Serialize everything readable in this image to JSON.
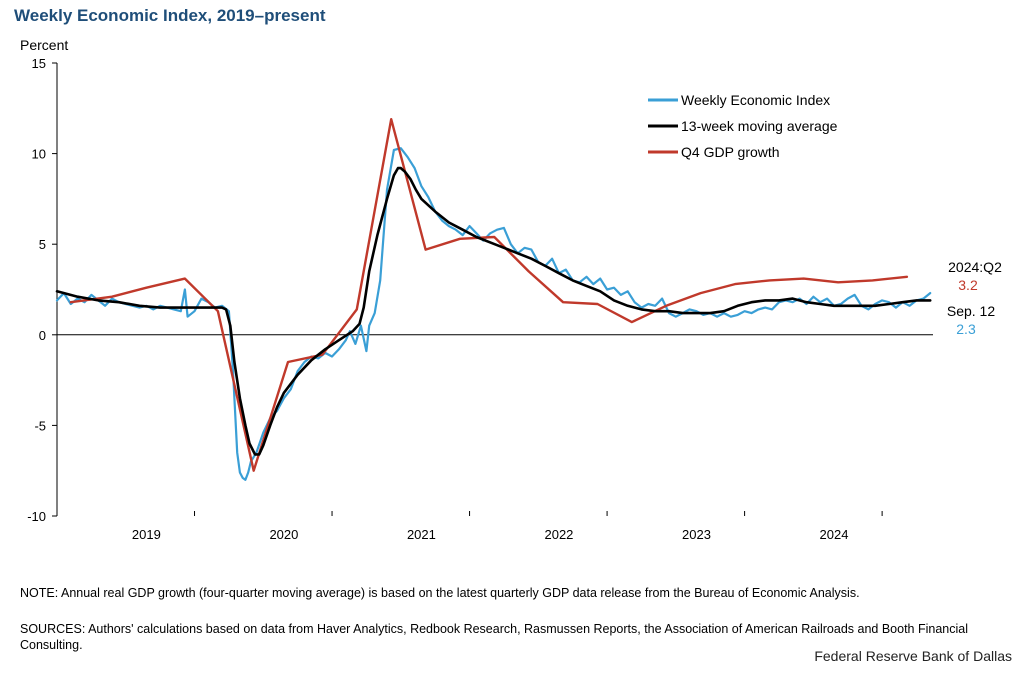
{
  "header": {
    "title": "Weekly Economic Index, 2019–present"
  },
  "notes": {
    "note": "NOTE: Annual real GDP growth (four-quarter moving average) is based on the latest quarterly GDP data release from the Bureau of Economic Analysis.",
    "sources": "SOURCES: Authors' calculations based on data from Haver Analytics, Redbook Research, Rasmussen Reports, the Association of American Railroads and Booth Financial Consulting."
  },
  "footer": {
    "credit": "Federal Reserve Bank of Dallas"
  },
  "annotations": {
    "gdp_period": "2024:Q2",
    "gdp_value": "3.2",
    "wei_date": "Sep. 12",
    "wei_value": "2.3"
  },
  "colors": {
    "wei": "#3a9fd6",
    "ma": "#000000",
    "gdp": "#c0392b",
    "title": "#1f4e79"
  },
  "chart_data": {
    "type": "line",
    "title": "Weekly Economic Index, 2019–present",
    "ylabel": "Percent",
    "xlabel": "",
    "ylim": [
      -10,
      15
    ],
    "xlim": [
      2018.35,
      2024.72
    ],
    "yticks": [
      -10,
      -5,
      0,
      5,
      10,
      15
    ],
    "xtick_labels": [
      "2019",
      "2020",
      "2021",
      "2022",
      "2023",
      "2024"
    ],
    "xtick_positions": [
      2019,
      2020,
      2021,
      2022,
      2023,
      2024
    ],
    "grid": false,
    "legend": "top-right",
    "series": [
      {
        "name": "Weekly Economic Index",
        "x": [
          2018.35,
          2018.4,
          2018.45,
          2018.5,
          2018.55,
          2018.6,
          2018.65,
          2018.7,
          2018.75,
          2018.8,
          2018.85,
          2018.9,
          2018.95,
          2019.0,
          2019.05,
          2019.1,
          2019.15,
          2019.2,
          2019.25,
          2019.28,
          2019.3,
          2019.35,
          2019.4,
          2019.45,
          2019.5,
          2019.55,
          2019.6,
          2019.63,
          2019.66,
          2019.68,
          2019.7,
          2019.72,
          2019.74,
          2019.76,
          2019.8,
          2019.85,
          2019.9,
          2019.95,
          2020.0,
          2020.05,
          2020.1,
          2020.15,
          2020.2,
          2020.25,
          2020.3,
          2020.35,
          2020.4,
          2020.45,
          2020.48,
          2020.52,
          2020.56,
          2020.6,
          2020.62,
          2020.66,
          2020.7,
          2020.75,
          2020.8,
          2020.85,
          2020.9,
          2020.95,
          2021.0,
          2021.05,
          2021.1,
          2021.15,
          2021.2,
          2021.25,
          2021.3,
          2021.35,
          2021.4,
          2021.45,
          2021.5,
          2021.55,
          2021.6,
          2021.65,
          2021.7,
          2021.75,
          2021.8,
          2021.85,
          2021.9,
          2021.95,
          2022.0,
          2022.05,
          2022.1,
          2022.15,
          2022.2,
          2022.25,
          2022.3,
          2022.35,
          2022.4,
          2022.45,
          2022.5,
          2022.55,
          2022.6,
          2022.65,
          2022.7,
          2022.75,
          2022.8,
          2022.85,
          2022.9,
          2022.95,
          2023.0,
          2023.05,
          2023.1,
          2023.15,
          2023.2,
          2023.25,
          2023.3,
          2023.35,
          2023.4,
          2023.45,
          2023.5,
          2023.55,
          2023.6,
          2023.65,
          2023.7,
          2023.75,
          2023.8,
          2023.85,
          2023.9,
          2023.95,
          2024.0,
          2024.05,
          2024.1,
          2024.15,
          2024.2,
          2024.25,
          2024.3,
          2024.35,
          2024.4,
          2024.45,
          2024.5,
          2024.55,
          2024.6,
          2024.65,
          2024.7
        ],
        "y": [
          1.9,
          2.3,
          1.7,
          2.0,
          1.8,
          2.2,
          1.9,
          1.6,
          2.0,
          1.8,
          1.7,
          1.6,
          1.5,
          1.6,
          1.4,
          1.6,
          1.5,
          1.4,
          1.3,
          2.5,
          1.0,
          1.3,
          2.0,
          1.8,
          1.5,
          1.6,
          1.3,
          -2.0,
          -6.5,
          -7.6,
          -7.9,
          -8.0,
          -7.6,
          -7.0,
          -6.5,
          -5.4,
          -4.6,
          -4.2,
          -3.5,
          -3.0,
          -2.0,
          -1.5,
          -1.2,
          -1.3,
          -1.0,
          -1.2,
          -0.8,
          -0.3,
          0.2,
          -0.5,
          0.5,
          -0.9,
          0.5,
          1.2,
          3.0,
          8.0,
          10.2,
          10.3,
          9.8,
          9.2,
          8.2,
          7.6,
          6.8,
          6.3,
          6.0,
          5.8,
          5.5,
          6.0,
          5.6,
          5.2,
          5.6,
          5.8,
          5.9,
          5.0,
          4.5,
          4.8,
          4.7,
          4.0,
          3.8,
          4.2,
          3.4,
          3.6,
          3.0,
          2.9,
          3.2,
          2.8,
          3.1,
          2.5,
          2.6,
          2.2,
          2.4,
          1.8,
          1.5,
          1.7,
          1.6,
          2.0,
          1.2,
          1.0,
          1.2,
          1.4,
          1.3,
          1.1,
          1.2,
          1.0,
          1.2,
          1.0,
          1.1,
          1.3,
          1.2,
          1.4,
          1.5,
          1.4,
          1.8,
          1.9,
          1.8,
          2.0,
          1.7,
          2.1,
          1.8,
          2.0,
          1.6,
          1.7,
          2.0,
          2.2,
          1.6,
          1.4,
          1.7,
          1.9,
          1.8,
          1.5,
          1.8,
          1.6,
          1.9,
          2.0,
          2.3
        ]
      },
      {
        "name": "13-week moving average",
        "x": [
          2018.35,
          2018.5,
          2018.65,
          2018.8,
          2018.95,
          2019.1,
          2019.25,
          2019.4,
          2019.5,
          2019.55,
          2019.58,
          2019.61,
          2019.64,
          2019.68,
          2019.72,
          2019.75,
          2019.79,
          2019.82,
          2019.85,
          2019.9,
          2019.95,
          2020.0,
          2020.1,
          2020.2,
          2020.3,
          2020.4,
          2020.5,
          2020.55,
          2020.58,
          2020.62,
          2020.68,
          2020.75,
          2020.8,
          2020.83,
          2020.85,
          2020.88,
          2020.92,
          2020.96,
          2021.0,
          2021.1,
          2021.2,
          2021.3,
          2021.4,
          2021.5,
          2021.6,
          2021.7,
          2021.8,
          2021.9,
          2022.0,
          2022.1,
          2022.2,
          2022.3,
          2022.4,
          2022.5,
          2022.6,
          2022.7,
          2022.8,
          2022.9,
          2023.0,
          2023.1,
          2023.2,
          2023.3,
          2023.4,
          2023.5,
          2023.6,
          2023.7,
          2023.8,
          2023.9,
          2024.0,
          2024.1,
          2024.2,
          2024.3,
          2024.4,
          2024.5,
          2024.6,
          2024.7
        ],
        "y": [
          2.4,
          2.1,
          1.9,
          1.8,
          1.6,
          1.5,
          1.5,
          1.5,
          1.5,
          1.5,
          1.4,
          0.5,
          -1.5,
          -3.5,
          -5.0,
          -6.0,
          -6.6,
          -6.6,
          -6.1,
          -5.0,
          -4.0,
          -3.2,
          -2.2,
          -1.4,
          -0.8,
          -0.3,
          0.2,
          0.6,
          1.5,
          3.5,
          5.5,
          7.5,
          8.8,
          9.2,
          9.2,
          9.0,
          8.6,
          8.0,
          7.5,
          6.8,
          6.2,
          5.8,
          5.4,
          5.1,
          4.8,
          4.5,
          4.2,
          3.8,
          3.4,
          3.0,
          2.7,
          2.4,
          1.9,
          1.6,
          1.4,
          1.3,
          1.3,
          1.2,
          1.2,
          1.2,
          1.3,
          1.6,
          1.8,
          1.9,
          1.9,
          2.0,
          1.8,
          1.7,
          1.6,
          1.6,
          1.6,
          1.6,
          1.7,
          1.8,
          1.9,
          1.9
        ]
      },
      {
        "name": "Q4 GDP growth",
        "x": [
          2018.45,
          2018.75,
          2019.0,
          2019.28,
          2019.52,
          2019.78,
          2020.03,
          2020.28,
          2020.53,
          2020.78,
          2021.03,
          2021.28,
          2021.53,
          2021.78,
          2022.03,
          2022.28,
          2022.53,
          2022.78,
          2023.03,
          2023.28,
          2023.53,
          2023.78,
          2024.03,
          2024.28,
          2024.53
        ],
        "y": [
          1.8,
          2.1,
          2.6,
          3.1,
          1.3,
          -7.5,
          -1.5,
          -1.1,
          1.4,
          11.9,
          4.7,
          5.3,
          5.4,
          3.5,
          1.8,
          1.7,
          0.7,
          1.6,
          2.3,
          2.8,
          3.0,
          3.1,
          2.9,
          3.0,
          3.2
        ]
      }
    ]
  }
}
